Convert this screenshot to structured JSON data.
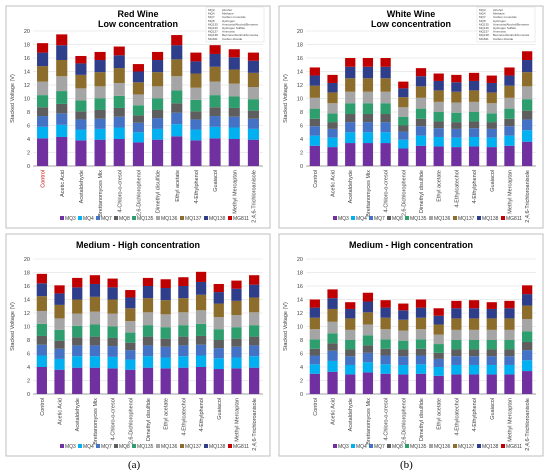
{
  "figure": {
    "label_a": "(a)",
    "label_b": "(b)",
    "legend_series": [
      "MQ3",
      "MQ4",
      "MQ7",
      "MQ8",
      "MQ135",
      "MQ136",
      "MQ137",
      "MQ138",
      "MG811"
    ]
  },
  "chart_data": [
    {
      "type": "bar",
      "title": "Red Wine",
      "subtitle": "Low concentration",
      "ylabel": "Stacked Voltage (V)",
      "ylim": [
        0,
        20
      ],
      "grid": true,
      "legend_position": "bottom",
      "categories": [
        "Control",
        "Acetic Acid",
        "Acetaldehyde",
        "Brettanomyces Mix",
        "4-Chloro-o-cresol",
        "2,6-Dichlorophenol",
        "Dimethyl disulfide",
        "Ethyl acetate",
        "4-Ethylphenol",
        "Guaiacol",
        "Methyl Mercaptan",
        "2,4,6-Trichloroanisole"
      ],
      "series": [
        {
          "name": "MQ3",
          "values": [
            4.1,
            4.3,
            3.8,
            3.9,
            4.0,
            3.5,
            3.9,
            4.4,
            3.8,
            4.1,
            4.0,
            3.9
          ]
        },
        {
          "name": "MQ4",
          "values": [
            1.7,
            1.8,
            1.6,
            1.6,
            1.7,
            1.5,
            1.6,
            1.8,
            1.6,
            1.7,
            1.7,
            1.6
          ]
        },
        {
          "name": "MQ7",
          "values": [
            1.6,
            1.7,
            1.5,
            1.5,
            1.6,
            1.4,
            1.6,
            1.7,
            1.5,
            1.6,
            1.6,
            1.5
          ]
        },
        {
          "name": "MQ8",
          "values": [
            1.3,
            1.4,
            1.2,
            1.3,
            1.3,
            1.1,
            1.2,
            1.4,
            1.2,
            1.3,
            1.3,
            1.2
          ]
        },
        {
          "name": "MQ135",
          "values": [
            1.8,
            1.9,
            1.6,
            1.7,
            1.8,
            1.5,
            1.7,
            1.9,
            1.7,
            1.8,
            1.7,
            1.7
          ]
        },
        {
          "name": "MQ136",
          "values": [
            2.0,
            2.2,
            1.8,
            1.8,
            1.9,
            1.6,
            1.8,
            2.1,
            1.8,
            2.0,
            1.9,
            1.8
          ]
        },
        {
          "name": "MQ137",
          "values": [
            2.3,
            2.4,
            2.0,
            2.1,
            2.2,
            1.8,
            2.1,
            2.5,
            2.1,
            2.2,
            2.1,
            2.1
          ]
        },
        {
          "name": "MQ138",
          "values": [
            2.0,
            2.2,
            1.7,
            1.8,
            1.9,
            1.6,
            1.8,
            2.1,
            1.8,
            1.9,
            1.8,
            1.8
          ]
        },
        {
          "name": "MG811",
          "values": [
            1.4,
            1.6,
            1.1,
            1.2,
            1.3,
            1.1,
            1.2,
            1.5,
            1.3,
            1.3,
            1.2,
            1.2
          ]
        }
      ]
    },
    {
      "type": "bar",
      "title": "White Wine",
      "subtitle": "Low concentration",
      "ylabel": "Stacked Voltage (V)",
      "ylim": [
        0,
        20
      ],
      "grid": true,
      "legend_position": "bottom",
      "categories": [
        "Control",
        "Acetic Acid",
        "Acetaldehyde",
        "Brettanomyces Mix",
        "4-Chloro-o-cresol",
        "2,6-Dichlorophenol",
        "Dimethyl disulfide",
        "Ethyl acetate",
        "4-Ethylcatechol",
        "4-Ethylphenol",
        "Guaiacol",
        "Methyl Mercaptan",
        "2,4,6-Trichloroanisole"
      ],
      "series": [
        {
          "name": "MQ3",
          "values": [
            3.0,
            2.8,
            3.4,
            3.4,
            3.4,
            2.6,
            3.0,
            2.9,
            2.8,
            2.9,
            2.8,
            3.0,
            3.6
          ]
        },
        {
          "name": "MQ4",
          "values": [
            1.5,
            1.4,
            1.6,
            1.6,
            1.6,
            1.3,
            1.5,
            1.4,
            1.4,
            1.4,
            1.4,
            1.5,
            1.7
          ]
        },
        {
          "name": "MQ7",
          "values": [
            1.4,
            1.3,
            1.5,
            1.5,
            1.5,
            1.2,
            1.4,
            1.3,
            1.3,
            1.3,
            1.3,
            1.4,
            1.6
          ]
        },
        {
          "name": "MQ8",
          "values": [
            1.1,
            1.0,
            1.2,
            1.2,
            1.2,
            0.9,
            1.1,
            1.0,
            1.0,
            1.0,
            1.0,
            1.1,
            1.3
          ]
        },
        {
          "name": "MQ135",
          "values": [
            1.5,
            1.3,
            1.6,
            1.6,
            1.6,
            1.3,
            1.5,
            1.4,
            1.4,
            1.4,
            1.3,
            1.5,
            1.7
          ]
        },
        {
          "name": "MQ136",
          "values": [
            1.6,
            1.5,
            1.7,
            1.7,
            1.7,
            1.4,
            1.6,
            1.5,
            1.5,
            1.5,
            1.5,
            1.6,
            1.9
          ]
        },
        {
          "name": "MQ137",
          "values": [
            1.8,
            1.6,
            2.0,
            2.0,
            2.0,
            1.5,
            1.7,
            1.7,
            1.6,
            1.7,
            1.6,
            1.8,
            2.1
          ]
        },
        {
          "name": "MQ138",
          "values": [
            1.5,
            1.4,
            1.7,
            1.7,
            1.7,
            1.3,
            1.5,
            1.4,
            1.4,
            1.4,
            1.4,
            1.5,
            1.8
          ]
        },
        {
          "name": "MG811",
          "values": [
            1.2,
            1.2,
            1.3,
            1.3,
            1.3,
            1.0,
            1.2,
            1.1,
            1.1,
            1.2,
            1.1,
            1.2,
            1.3
          ]
        }
      ]
    },
    {
      "type": "bar",
      "title": "Medium - High concentration",
      "subtitle": "",
      "ylabel": "Stacked Voltage (V)",
      "ylim": [
        0,
        20
      ],
      "grid": true,
      "legend_position": "bottom",
      "categories": [
        "Control",
        "Acetic Acid",
        "Acetaldehyde",
        "Brettanomyces Mix",
        "4-Chloro-o-cresol",
        "2,6-Dichlorophenol",
        "Dimethyl disulfide",
        "Ethyl acetate",
        "4-Ethylcatechol",
        "4-Ethylphenol",
        "Guaiacol",
        "Methyl Mercaptan",
        "2,4,6-Trichloroanisole"
      ],
      "series": [
        {
          "name": "MQ3",
          "values": [
            4.0,
            3.6,
            3.9,
            3.9,
            3.8,
            3.6,
            3.9,
            3.8,
            3.9,
            4.0,
            3.7,
            3.8,
            3.9
          ]
        },
        {
          "name": "MQ4",
          "values": [
            1.7,
            1.6,
            1.7,
            1.7,
            1.7,
            1.5,
            1.7,
            1.6,
            1.7,
            1.7,
            1.6,
            1.6,
            1.7
          ]
        },
        {
          "name": "MQ7",
          "values": [
            1.6,
            1.5,
            1.6,
            1.6,
            1.6,
            1.4,
            1.6,
            1.6,
            1.6,
            1.6,
            1.5,
            1.6,
            1.6
          ]
        },
        {
          "name": "MQ8",
          "values": [
            1.3,
            1.2,
            1.2,
            1.3,
            1.2,
            1.1,
            1.3,
            1.2,
            1.3,
            1.3,
            1.2,
            1.2,
            1.3
          ]
        },
        {
          "name": "MQ135",
          "values": [
            1.8,
            1.6,
            1.7,
            1.8,
            1.7,
            1.5,
            1.7,
            1.7,
            1.7,
            1.8,
            1.6,
            1.7,
            1.7
          ]
        },
        {
          "name": "MQ136",
          "values": [
            1.9,
            1.7,
            1.8,
            1.9,
            1.9,
            1.7,
            1.9,
            1.9,
            1.9,
            2.0,
            1.8,
            1.8,
            1.9
          ]
        },
        {
          "name": "MQ137",
          "values": [
            2.2,
            2.0,
            2.1,
            2.2,
            2.1,
            1.9,
            2.1,
            2.1,
            2.1,
            2.3,
            2.0,
            2.1,
            2.2
          ]
        },
        {
          "name": "MQ138",
          "values": [
            1.9,
            1.7,
            1.8,
            1.9,
            1.8,
            1.6,
            1.8,
            1.8,
            1.8,
            1.9,
            1.7,
            1.8,
            1.9
          ]
        },
        {
          "name": "MG811",
          "values": [
            1.4,
            1.2,
            1.4,
            1.3,
            1.3,
            1.1,
            1.2,
            1.3,
            1.3,
            1.5,
            1.2,
            1.2,
            1.4
          ]
        }
      ]
    },
    {
      "type": "bar",
      "title": "Medium - High concentration",
      "subtitle": "",
      "ylabel": "Stacked Voltage (V)",
      "ylim": [
        0,
        20
      ],
      "grid": true,
      "legend_position": "bottom",
      "categories": [
        "Control",
        "Acetic Acid",
        "Acetaldehyde",
        "Brettanomyces Mix",
        "4-Chloro-o-cresol",
        "2,6-Dichlorophenol",
        "Dimethyl disulfide",
        "Ethyl acetate",
        "4-Ethylcatechol",
        "4-Ethylphenol",
        "Guaiacol",
        "Methyl Mercaptan",
        "2,4,6-Trichloroanisole"
      ],
      "series": [
        {
          "name": "MQ3",
          "values": [
            3.0,
            3.3,
            2.9,
            3.2,
            3.0,
            2.9,
            3.0,
            2.7,
            2.9,
            2.9,
            2.9,
            2.9,
            3.4
          ]
        },
        {
          "name": "MQ4",
          "values": [
            1.4,
            1.6,
            1.4,
            1.5,
            1.4,
            1.4,
            1.4,
            1.3,
            1.4,
            1.4,
            1.4,
            1.4,
            1.6
          ]
        },
        {
          "name": "MQ7",
          "values": [
            1.3,
            1.5,
            1.3,
            1.4,
            1.3,
            1.3,
            1.3,
            1.2,
            1.3,
            1.3,
            1.3,
            1.3,
            1.5
          ]
        },
        {
          "name": "MQ8",
          "values": [
            1.0,
            1.1,
            1.0,
            1.1,
            1.0,
            1.0,
            1.0,
            0.9,
            1.0,
            1.0,
            1.0,
            1.0,
            1.2
          ]
        },
        {
          "name": "MQ135",
          "values": [
            1.4,
            1.5,
            1.4,
            1.5,
            1.4,
            1.3,
            1.4,
            1.3,
            1.4,
            1.4,
            1.4,
            1.4,
            1.6
          ]
        },
        {
          "name": "MQ136",
          "values": [
            1.5,
            1.7,
            1.5,
            1.6,
            1.5,
            1.5,
            1.5,
            1.4,
            1.5,
            1.5,
            1.5,
            1.5,
            1.8
          ]
        },
        {
          "name": "MQ137",
          "values": [
            1.7,
            1.9,
            1.7,
            1.8,
            1.7,
            1.6,
            1.7,
            1.5,
            1.7,
            1.7,
            1.7,
            1.7,
            2.0
          ]
        },
        {
          "name": "MQ138",
          "values": [
            1.5,
            1.6,
            1.4,
            1.6,
            1.5,
            1.4,
            1.5,
            1.3,
            1.5,
            1.5,
            1.4,
            1.5,
            1.7
          ]
        },
        {
          "name": "MG811",
          "values": [
            1.2,
            1.3,
            1.0,
            1.3,
            1.1,
            1.0,
            1.2,
            1.1,
            1.1,
            1.2,
            1.0,
            1.1,
            1.3
          ]
        }
      ]
    }
  ],
  "colors": {
    "series": [
      "#7030a0",
      "#00b0f0",
      "#4472c4",
      "#5e5e5e",
      "#2f9e6e",
      "#a5a5a5",
      "#8c6d2c",
      "#2e3e8a",
      "#c00000"
    ],
    "grid": "#d9d9d9",
    "axis": "#595959"
  },
  "sensor_key": {
    "rows": [
      [
        "MQ3",
        "Alcohol"
      ],
      [
        "MQ4",
        "Methane"
      ],
      [
        "MQ7",
        "Carbon monoxide"
      ],
      [
        "MQ8",
        "Hydrogen"
      ],
      [
        "MQ135",
        "Ammonia/Alcohol/Benzene"
      ],
      [
        "MQ136",
        "Hydrogen Sulfide"
      ],
      [
        "MQ137",
        "Ammonia"
      ],
      [
        "MQ138",
        "Benzene/Alcohol/Ammonia"
      ],
      [
        "MG811",
        "Carbon dioxide"
      ]
    ]
  }
}
